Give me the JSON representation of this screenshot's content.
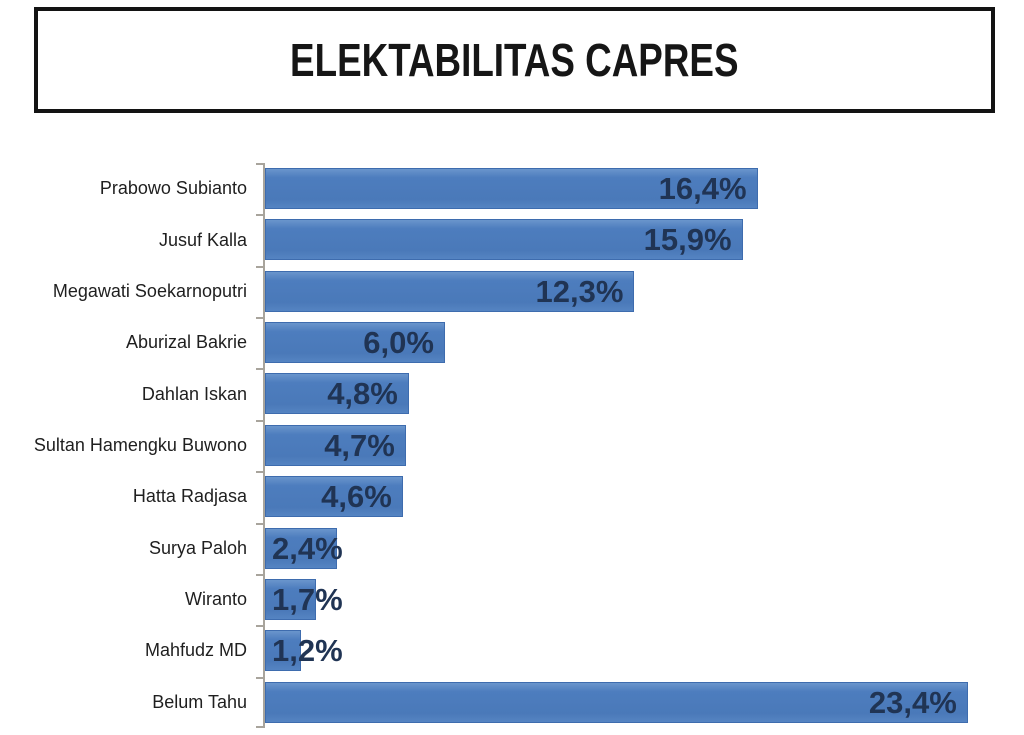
{
  "header": {
    "title": "ELEKTABILITAS CAPRES"
  },
  "chart_data": {
    "type": "bar",
    "orientation": "horizontal",
    "title": "ELEKTABILITAS CAPRES",
    "xlabel": "",
    "ylabel": "",
    "xlim": [
      0,
      25
    ],
    "grid": false,
    "legend": false,
    "bar_color": "#4d7dbe",
    "value_label_color": "#203454",
    "categories": [
      "Prabowo Subianto",
      "Jusuf Kalla",
      "Megawati Soekarnoputri",
      "Aburizal Bakrie",
      "Dahlan Iskan",
      "Sultan Hamengku Buwono",
      "Hatta Radjasa",
      "Surya Paloh",
      "Wiranto",
      "Mahfudz MD",
      "Belum Tahu"
    ],
    "values": [
      16.4,
      15.9,
      12.3,
      6.0,
      4.8,
      4.7,
      4.6,
      2.4,
      1.7,
      1.2,
      23.4
    ],
    "value_labels": [
      "16,4%",
      "15,9%",
      "12,3%",
      "6,0%",
      "4,8%",
      "4,7%",
      "4,6%",
      "2,4%",
      "1,7%",
      "1,2%",
      "23,4%"
    ]
  }
}
